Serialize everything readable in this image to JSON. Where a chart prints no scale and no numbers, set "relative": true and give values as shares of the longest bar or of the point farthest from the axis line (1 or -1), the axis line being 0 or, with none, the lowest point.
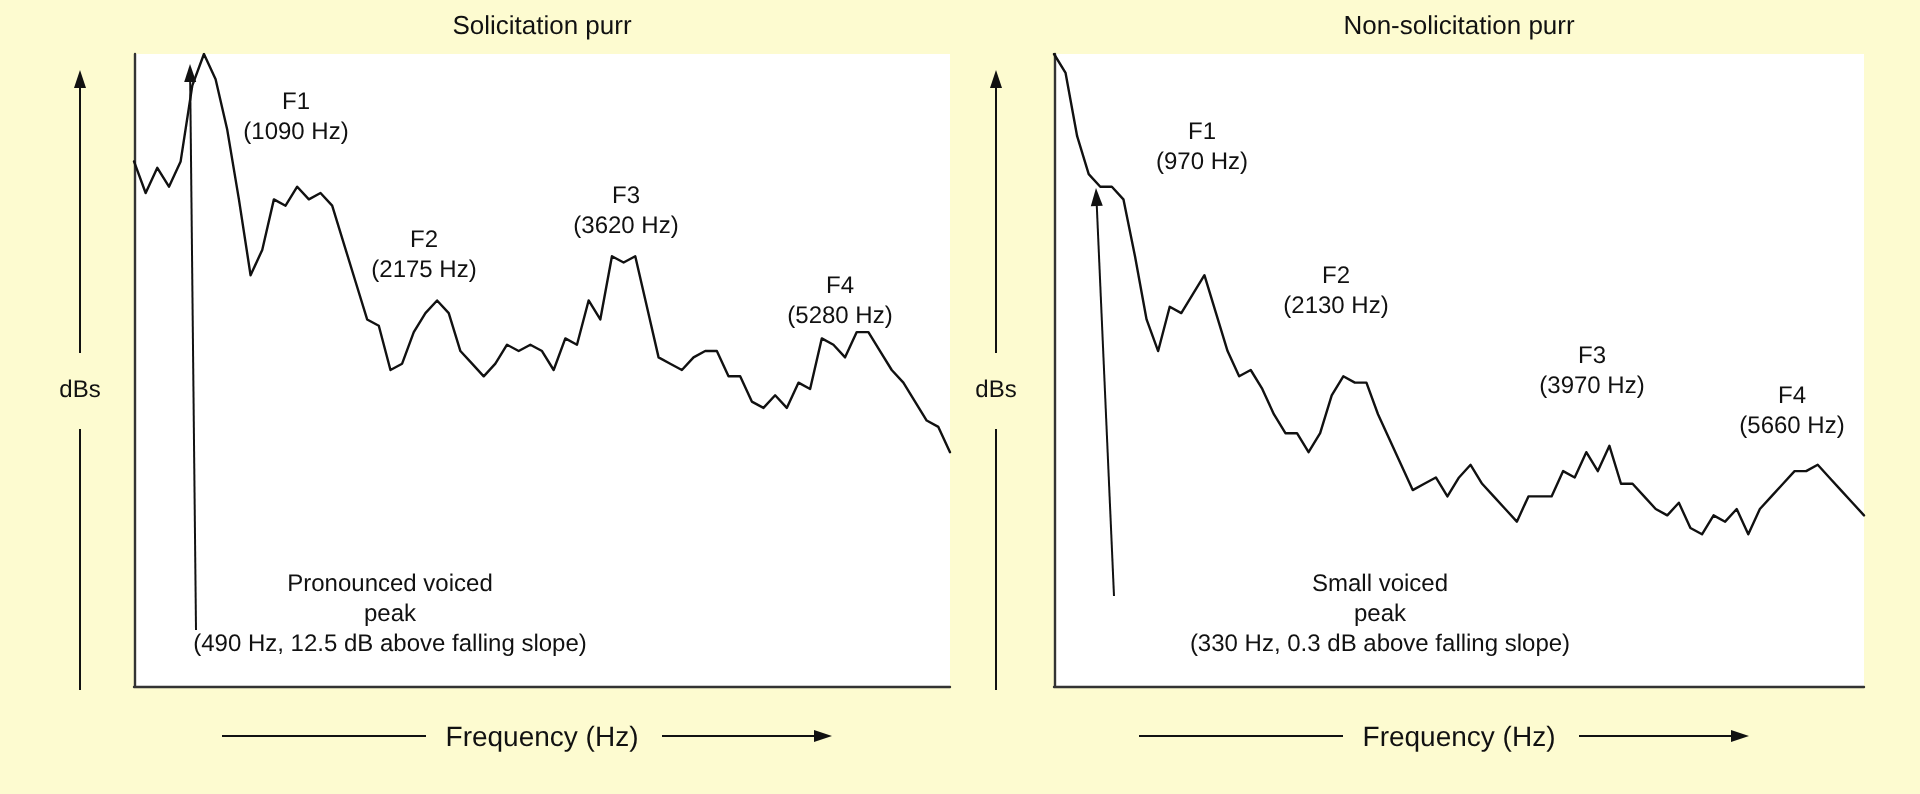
{
  "chart_data": [
    {
      "type": "line",
      "title": "Solicitation purr",
      "xlabel": "Frequency (Hz)",
      "ylabel": "dBs",
      "relative": true,
      "grid": false,
      "line_style": "solid",
      "color": "#111111",
      "categories": [
        null,
        null,
        null,
        null,
        null,
        null,
        null,
        null,
        null,
        null,
        null,
        null,
        null,
        null,
        null,
        null,
        null,
        null,
        null,
        null,
        null,
        null,
        null,
        null,
        null,
        null,
        null,
        null,
        null,
        null,
        null,
        null,
        null,
        null,
        null,
        null,
        null,
        null,
        null,
        null,
        null,
        null,
        null,
        null,
        null,
        null,
        null,
        null,
        null,
        null,
        null,
        null,
        null,
        null,
        null,
        null,
        null,
        null,
        null,
        null,
        null,
        null,
        null,
        null,
        null,
        null,
        null,
        null,
        null,
        null,
        null
      ],
      "values": [
        0.83,
        0.78,
        0.82,
        0.79,
        0.83,
        0.95,
        1.0,
        0.96,
        0.88,
        0.77,
        0.65,
        0.69,
        0.77,
        0.76,
        0.79,
        0.77,
        0.78,
        0.76,
        0.7,
        0.64,
        0.58,
        0.57,
        0.5,
        0.51,
        0.56,
        0.59,
        0.61,
        0.59,
        0.53,
        0.51,
        0.49,
        0.51,
        0.54,
        0.53,
        0.54,
        0.53,
        0.5,
        0.55,
        0.54,
        0.61,
        0.58,
        0.68,
        0.67,
        0.68,
        0.6,
        0.52,
        0.51,
        0.5,
        0.52,
        0.53,
        0.53,
        0.49,
        0.49,
        0.45,
        0.44,
        0.46,
        0.44,
        0.48,
        0.47,
        0.55,
        0.54,
        0.52,
        0.56,
        0.56,
        0.53,
        0.5,
        0.48,
        0.45,
        0.42,
        0.41,
        0.37
      ],
      "annotations": [
        "F1\n(1090 Hz)",
        "F2\n(2175 Hz)",
        "F3\n(3620 Hz)",
        "F4\n(5280 Hz)",
        "Pronounced voiced\npeak\n(490 Hz, 12.5 dB above falling slope)"
      ]
    },
    {
      "type": "line",
      "title": "Non-solicitation purr",
      "xlabel": "Frequency (Hz)",
      "ylabel": "dBs",
      "relative": true,
      "grid": false,
      "line_style": "solid",
      "color": "#111111",
      "categories": [
        null,
        null,
        null,
        null,
        null,
        null,
        null,
        null,
        null,
        null,
        null,
        null,
        null,
        null,
        null,
        null,
        null,
        null,
        null,
        null,
        null,
        null,
        null,
        null,
        null,
        null,
        null,
        null,
        null,
        null,
        null,
        null,
        null,
        null,
        null,
        null,
        null,
        null,
        null,
        null,
        null,
        null,
        null,
        null,
        null,
        null,
        null,
        null,
        null,
        null,
        null,
        null,
        null,
        null,
        null,
        null,
        null,
        null,
        null,
        null,
        null,
        null,
        null,
        null,
        null,
        null,
        null,
        null,
        null,
        null,
        null
      ],
      "values": [
        1.0,
        0.97,
        0.87,
        0.81,
        0.79,
        0.79,
        0.77,
        0.68,
        0.58,
        0.53,
        0.6,
        0.59,
        0.62,
        0.65,
        0.59,
        0.53,
        0.49,
        0.5,
        0.47,
        0.43,
        0.4,
        0.4,
        0.37,
        0.4,
        0.46,
        0.49,
        0.48,
        0.48,
        0.43,
        0.39,
        0.35,
        0.31,
        0.32,
        0.33,
        0.3,
        0.33,
        0.35,
        0.32,
        0.3,
        0.28,
        0.26,
        0.3,
        0.3,
        0.3,
        0.34,
        0.33,
        0.37,
        0.34,
        0.38,
        0.32,
        0.32,
        0.3,
        0.28,
        0.27,
        0.29,
        0.25,
        0.24,
        0.27,
        0.26,
        0.28,
        0.24,
        0.28,
        0.3,
        0.32,
        0.34,
        0.34,
        0.35,
        0.33,
        0.31,
        0.29,
        0.27
      ],
      "annotations": [
        "F1\n(970 Hz)",
        "F2\n(2130 Hz)",
        "F3\n(3970 Hz)",
        "F4\n(5660 Hz)",
        "Small voiced\npeak\n(330 Hz, 0.3 dB above falling slope)"
      ]
    }
  ]
}
